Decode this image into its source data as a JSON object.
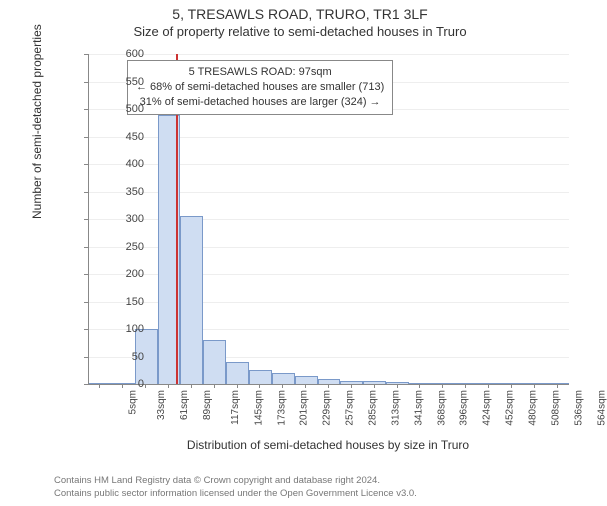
{
  "title_line1": "5, TRESAWLS ROAD, TRURO, TR1 3LF",
  "title_line2": "Size of property relative to semi-detached houses in Truro",
  "chart": {
    "type": "histogram",
    "y_label": "Number of semi-detached properties",
    "x_label": "Distribution of semi-detached houses by size in Truro",
    "ylim": [
      0,
      600
    ],
    "ytick_step": 50,
    "ytick_labels": [
      "0",
      "50",
      "100",
      "150",
      "200",
      "250",
      "300",
      "350",
      "400",
      "450",
      "500",
      "550",
      "600"
    ],
    "x_tick_labels": [
      "5sqm",
      "33sqm",
      "61sqm",
      "89sqm",
      "117sqm",
      "145sqm",
      "173sqm",
      "201sqm",
      "229sqm",
      "257sqm",
      "285sqm",
      "313sqm",
      "341sqm",
      "368sqm",
      "396sqm",
      "424sqm",
      "452sqm",
      "480sqm",
      "508sqm",
      "536sqm",
      "564sqm"
    ],
    "bar_values": [
      0,
      0,
      100,
      490,
      305,
      80,
      40,
      25,
      20,
      15,
      10,
      5,
      5,
      3,
      2,
      2,
      2,
      1,
      1,
      1,
      1
    ],
    "bar_fill": "#cfddf2",
    "bar_stroke": "#7a99c9",
    "grid_color": "#eeeeee",
    "axis_color": "#888888",
    "background_color": "#ffffff",
    "bar_width_ratio": 1.0,
    "tick_fontsize": 11,
    "label_fontsize": 12,
    "title_fontsize": 14,
    "reference_line": {
      "x_index": 3.32,
      "color": "#cc3333",
      "width": 2
    },
    "annotation": {
      "line1": "5 TRESAWLS ROAD: 97sqm",
      "line2": "← 68% of semi-detached houses are smaller (713)",
      "line3": "31% of semi-detached houses are larger (324) →",
      "border_color": "#888888",
      "background": "#ffffff",
      "fontsize": 11
    }
  },
  "footer": {
    "line1": "Contains HM Land Registry data © Crown copyright and database right 2024.",
    "line2": "Contains public sector information licensed under the Open Government Licence v3.0."
  }
}
